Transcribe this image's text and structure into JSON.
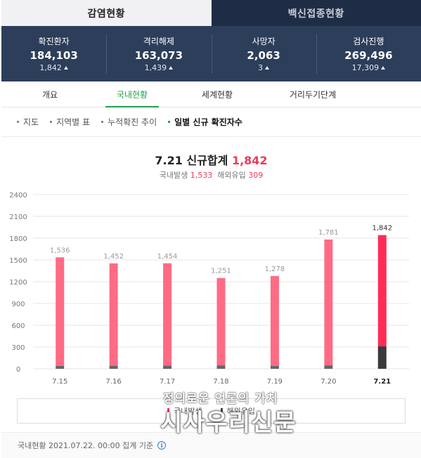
{
  "main_tabs": [
    {
      "label": "감염현황",
      "active": true
    },
    {
      "label": "백신접종현황",
      "active": false
    }
  ],
  "stats": [
    {
      "label": "확진환자",
      "value": "184,103",
      "delta": "1,842"
    },
    {
      "label": "격리해제",
      "value": "163,073",
      "delta": "1,439"
    },
    {
      "label": "사망자",
      "value": "2,063",
      "delta": "3"
    },
    {
      "label": "검사진행",
      "value": "269,496",
      "delta": "17,309"
    }
  ],
  "sub_tabs": [
    {
      "label": "개요",
      "active": false
    },
    {
      "label": "국내현황",
      "active": true
    },
    {
      "label": "세계현황",
      "active": false
    },
    {
      "label": "거리두기단계",
      "active": false
    }
  ],
  "filters": [
    {
      "label": "지도",
      "active": false
    },
    {
      "label": "지역별 표",
      "active": false
    },
    {
      "label": "누적확진 추이",
      "active": false
    },
    {
      "label": "일별 신규 확진자수",
      "active": true
    }
  ],
  "summary": {
    "date": "7.21",
    "title_label": "신규합계",
    "total": "1,842",
    "domestic_label": "국내발생",
    "domestic_value": "1,533",
    "overseas_label": "해외유입",
    "overseas_value": "309"
  },
  "chart_data": {
    "type": "bar",
    "categories": [
      "7.15",
      "7.16",
      "7.17",
      "7.18",
      "7.19",
      "7.20",
      "7.21"
    ],
    "series": [
      {
        "name": "국내발생",
        "values": [
          1497,
          1410,
          1411,
          1204,
          1238,
          1734,
          1533
        ],
        "color": "#ff6b84",
        "highlight_color": "#ff2d55"
      },
      {
        "name": "해외유입",
        "values": [
          39,
          42,
          43,
          47,
          40,
          47,
          309
        ],
        "color": "#666666",
        "highlight_color": "#3a3a3a"
      }
    ],
    "totals": [
      1536,
      1452,
      1454,
      1251,
      1278,
      1781,
      1842
    ],
    "total_labels": [
      "1,536",
      "1,452",
      "1,454",
      "1,251",
      "1,278",
      "1,781",
      "1,842"
    ],
    "highlight_index": 6,
    "yticks": [
      "0",
      "300",
      "600",
      "900",
      "1200",
      "1500",
      "1800",
      "2100",
      "2400"
    ],
    "ylim": [
      0,
      2400
    ],
    "grid": true,
    "legend_position": "bottom"
  },
  "legend": [
    {
      "label": "국내발생",
      "color": "#ff2d55"
    },
    {
      "label": "해외유입",
      "color": "#444444"
    }
  ],
  "footer": {
    "text": "국내현황 2021.07.22. 00:00 집계 기준",
    "info_icon": "info-icon"
  },
  "watermark": {
    "line1": "정의로운 언론의 가치",
    "line2": "시사우리신문"
  }
}
